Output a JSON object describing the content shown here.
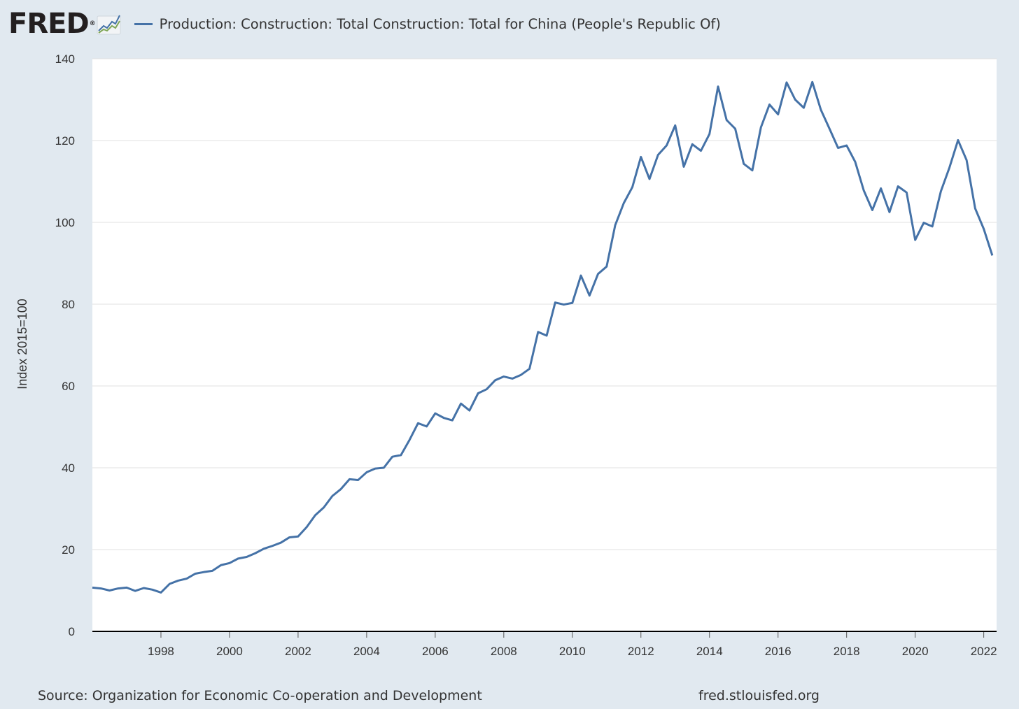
{
  "header": {
    "logo_text": "FRED",
    "logo_mark": "®",
    "logo_icon": "mini-line-chart-icon",
    "legend_label": "Production: Construction: Total Construction: Total for China (People's Republic Of)"
  },
  "colors": {
    "background": "#e1e9f0",
    "plot_background": "#ffffff",
    "series": "#4572a7",
    "grid": "#e0e0e0"
  },
  "footer": {
    "source": "Source: Organization for Economic Co-operation and Development",
    "site": "fred.stlouisfed.org"
  },
  "chart_data": {
    "type": "line",
    "title": "Production: Construction: Total Construction: Total for China (People's Republic Of)",
    "xlabel": "",
    "ylabel": "Index 2015=100",
    "xlim": [
      1996.0,
      2022.375
    ],
    "ylim": [
      0,
      140
    ],
    "yticks": [
      0,
      20,
      40,
      60,
      80,
      100,
      120,
      140
    ],
    "xticks": [
      1998,
      2000,
      2002,
      2004,
      2006,
      2008,
      2010,
      2012,
      2014,
      2016,
      2018,
      2020,
      2022
    ],
    "grid": true,
    "frequency": "quarterly",
    "start_year": 1996.0,
    "step": 0.25,
    "series": [
      {
        "name": "Production: Construction: Total Construction: Total for China (People's Republic Of)",
        "values": [
          10.7,
          10.5,
          10.0,
          10.5,
          10.7,
          9.9,
          10.6,
          10.2,
          9.5,
          11.6,
          12.4,
          12.9,
          14.1,
          14.5,
          14.8,
          16.2,
          16.7,
          17.8,
          18.2,
          19.1,
          20.2,
          20.9,
          21.7,
          23.0,
          23.2,
          25.5,
          28.4,
          30.3,
          33.1,
          34.8,
          37.2,
          37.0,
          38.9,
          39.8,
          40.0,
          42.7,
          43.1,
          46.8,
          50.9,
          50.1,
          53.3,
          52.2,
          51.6,
          55.7,
          54.0,
          58.2,
          59.2,
          61.4,
          62.3,
          61.8,
          62.7,
          64.2,
          73.2,
          72.3,
          80.4,
          79.9,
          80.3,
          87.0,
          82.1,
          87.4,
          89.2,
          99.3,
          104.7,
          108.6,
          116.0,
          110.6,
          116.5,
          118.8,
          123.7,
          113.6,
          119.1,
          117.5,
          121.6,
          133.2,
          125.0,
          122.9,
          114.3,
          112.7,
          123.2,
          128.8,
          126.4,
          134.2,
          130.0,
          128.0,
          134.3,
          127.5,
          122.9,
          118.2,
          118.8,
          114.8,
          107.8,
          103.0,
          108.3,
          102.5,
          108.8,
          107.3,
          95.7,
          99.9,
          99.0,
          107.6,
          113.4,
          120.1,
          115.2,
          103.4,
          98.4,
          91.9
        ]
      }
    ]
  }
}
